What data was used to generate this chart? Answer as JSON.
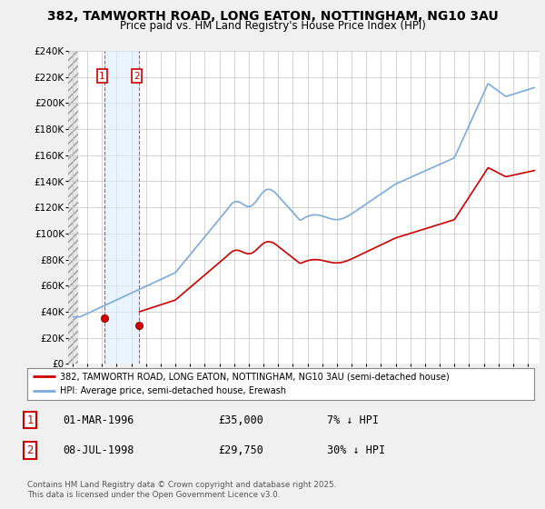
{
  "title": "382, TAMWORTH ROAD, LONG EATON, NOTTINGHAM, NG10 3AU",
  "subtitle": "Price paid vs. HM Land Registry's House Price Index (HPI)",
  "red_label": "382, TAMWORTH ROAD, LONG EATON, NOTTINGHAM, NG10 3AU (semi-detached house)",
  "blue_label": "HPI: Average price, semi-detached house, Erewash",
  "footer": "Contains HM Land Registry data © Crown copyright and database right 2025.\nThis data is licensed under the Open Government Licence v3.0.",
  "sale1_date": "01-MAR-1996",
  "sale1_price": "£35,000",
  "sale1_hpi": "7% ↓ HPI",
  "sale2_date": "08-JUL-1998",
  "sale2_price": "£29,750",
  "sale2_hpi": "30% ↓ HPI",
  "ylim": [
    0,
    240000
  ],
  "yticks": [
    0,
    20000,
    40000,
    60000,
    80000,
    100000,
    120000,
    140000,
    160000,
    180000,
    200000,
    220000,
    240000
  ],
  "ytick_labels": [
    "£0",
    "£20K",
    "£40K",
    "£60K",
    "£80K",
    "£100K",
    "£120K",
    "£140K",
    "£160K",
    "£180K",
    "£200K",
    "£220K",
    "£240K"
  ],
  "bg_color": "#f0f0f0",
  "plot_bg_color": "#ffffff",
  "grid_color": "#cccccc",
  "red_color": "#cc0000",
  "blue_color": "#7aaadd",
  "marker1_x": 1996.17,
  "marker2_x": 1998.54,
  "marker1_y": 35000,
  "marker2_y": 29750,
  "xmin": 1993.7,
  "xmax": 2025.8,
  "hpi_at_sale1": 37500,
  "hpi_at_sale2": 42500,
  "price_sale1": 35000,
  "price_sale2": 29750
}
